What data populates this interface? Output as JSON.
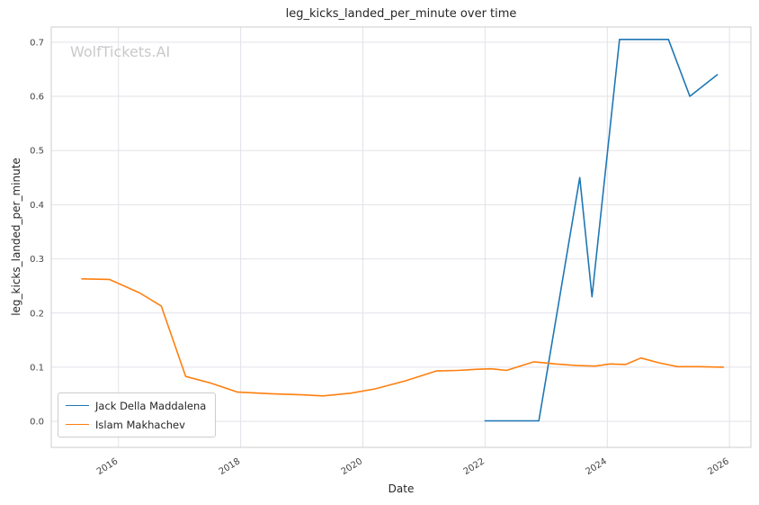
{
  "watermark": "WolfTickets.AI",
  "chart_data": {
    "type": "line",
    "title": "leg_kicks_landed_per_minute over time",
    "xlabel": "Date",
    "ylabel": "leg_kicks_landed_per_minute",
    "xlim": [
      2014.9,
      2026.35
    ],
    "ylim": [
      -0.048,
      0.728
    ],
    "xticks": [
      2016,
      2018,
      2020,
      2022,
      2024,
      2026
    ],
    "yticks": [
      0.0,
      0.1,
      0.2,
      0.3,
      0.4,
      0.5,
      0.6,
      0.7
    ],
    "grid": true,
    "grid_color": "#e2e2ea",
    "spine_color": "#cccccc",
    "legend_position": "lower left",
    "series": [
      {
        "name": "Jack Della Maddalena",
        "color": "#1f77b4",
        "x": [
          2022.0,
          2022.45,
          2022.88,
          2023.55,
          2023.75,
          2024.2,
          2024.6,
          2025.0,
          2025.35,
          2025.8
        ],
        "y": [
          0.001,
          0.001,
          0.001,
          0.45,
          0.23,
          0.705,
          0.705,
          0.705,
          0.6,
          0.64
        ]
      },
      {
        "name": "Islam Makhachev",
        "color": "#ff7f0e",
        "x": [
          2015.4,
          2015.85,
          2016.35,
          2016.7,
          2017.1,
          2017.5,
          2017.95,
          2018.5,
          2019.0,
          2019.35,
          2019.8,
          2020.2,
          2020.7,
          2021.2,
          2021.55,
          2021.85,
          2022.1,
          2022.35,
          2022.8,
          2023.15,
          2023.5,
          2023.8,
          2024.05,
          2024.3,
          2024.55,
          2024.85,
          2025.15,
          2025.5,
          2025.9
        ],
        "y": [
          0.263,
          0.262,
          0.237,
          0.213,
          0.083,
          0.071,
          0.054,
          0.051,
          0.049,
          0.047,
          0.052,
          0.06,
          0.075,
          0.093,
          0.094,
          0.096,
          0.097,
          0.094,
          0.11,
          0.106,
          0.103,
          0.102,
          0.106,
          0.105,
          0.117,
          0.108,
          0.101,
          0.101,
          0.1
        ]
      }
    ]
  }
}
